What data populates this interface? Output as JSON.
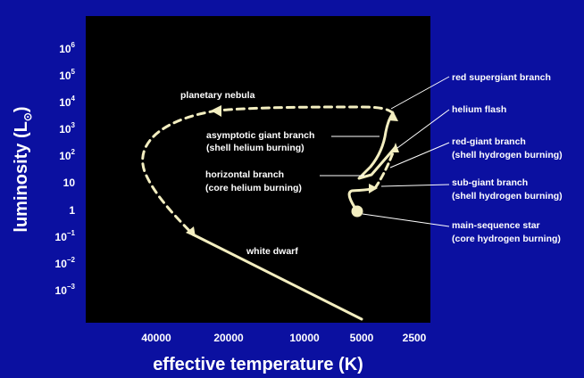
{
  "colors": {
    "background": "#0b10a0",
    "plot_background": "#000000",
    "track": "#f3eec0",
    "text": "#ffffff"
  },
  "chart_data": {
    "type": "line",
    "xlabel": "effective temperature (K)",
    "ylabel_main": "luminosity (L",
    "ylabel_sub": "⊙",
    "ylabel_close": ")",
    "x_log_scale": true,
    "x_reversed": true,
    "y_log_scale": true,
    "grid": false,
    "x_ticks": [
      {
        "value": 40000,
        "label": "40000"
      },
      {
        "value": 20000,
        "label": "20000"
      },
      {
        "value": 10000,
        "label": "10000"
      },
      {
        "value": 5000,
        "label": "5000"
      },
      {
        "value": 2500,
        "label": "2500"
      }
    ],
    "y_ticks": [
      {
        "exp": 6,
        "base": "10",
        "sup": "6"
      },
      {
        "exp": 5,
        "base": "10",
        "sup": "5"
      },
      {
        "exp": 4,
        "base": "10",
        "sup": "4"
      },
      {
        "exp": 3,
        "base": "10",
        "sup": "3"
      },
      {
        "exp": 2,
        "base": "10",
        "sup": "2"
      },
      {
        "exp": 1,
        "base": "10",
        "sup": ""
      },
      {
        "exp": 0,
        "base": "1",
        "sup": ""
      },
      {
        "exp": -1,
        "base": "10",
        "sup": "−1"
      },
      {
        "exp": -2,
        "base": "10",
        "sup": "−2"
      },
      {
        "exp": -3,
        "base": "10",
        "sup": "−3"
      }
    ],
    "stages": [
      {
        "id": "planetary-nebula",
        "lines": [
          "planetary nebula"
        ]
      },
      {
        "id": "asymptotic-giant-branch",
        "lines": [
          "asymptotic giant branch",
          "(shell helium burning)"
        ]
      },
      {
        "id": "horizontal-branch",
        "lines": [
          "horizontal branch",
          "(core helium burning)"
        ]
      },
      {
        "id": "white-dwarf",
        "lines": [
          "white dwarf"
        ]
      },
      {
        "id": "red-supergiant-branch",
        "lines": [
          "red supergiant branch"
        ]
      },
      {
        "id": "helium-flash",
        "lines": [
          "helium flash"
        ]
      },
      {
        "id": "red-giant-branch",
        "lines": [
          "red-giant branch",
          "(shell hydrogen burning)"
        ]
      },
      {
        "id": "sub-giant-branch",
        "lines": [
          "sub-giant branch",
          "(shell hydrogen burning)"
        ]
      },
      {
        "id": "main-sequence-star",
        "lines": [
          "main-sequence star",
          "(core hydrogen burning)"
        ]
      }
    ]
  }
}
